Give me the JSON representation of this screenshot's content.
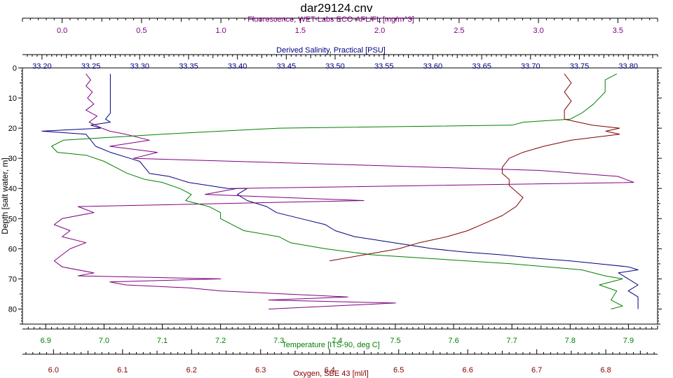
{
  "title": "dar29124.cnv",
  "chart_data": {
    "type": "line",
    "y_axis": {
      "label": "Depth [salt water, m]",
      "range": [
        0,
        85
      ],
      "inverted": true,
      "ticks": [
        "0",
        "10",
        "20",
        "30",
        "40",
        "50",
        "60",
        "70",
        "80"
      ],
      "tick_values": [
        0,
        10,
        20,
        30,
        40,
        50,
        60,
        70,
        80
      ]
    },
    "x_axes": [
      {
        "id": "fluorescence",
        "position": "top-outer",
        "label": "Fluorescence, WET Labs ECO-AFL/FL [mg/m^3]",
        "color": "#800080",
        "range": [
          -0.25,
          3.75
        ],
        "ticks": [
          "0.0",
          "0.5",
          "1.0",
          "1.5",
          "2.0",
          "2.5",
          "3.0",
          "3.5"
        ],
        "tick_values": [
          0,
          0.5,
          1.0,
          1.5,
          2.0,
          2.5,
          3.0,
          3.5
        ]
      },
      {
        "id": "salinity",
        "position": "top-inner",
        "label": "Derived Salinity, Practical [PSU]",
        "color": "#000080",
        "range": [
          33.18,
          33.83
        ],
        "ticks": [
          "33.20",
          "33.25",
          "33.30",
          "33.35",
          "33.40",
          "33.45",
          "33.50",
          "33.55",
          "33.60",
          "33.65",
          "33.70",
          "33.75",
          "33.80"
        ],
        "tick_values": [
          33.2,
          33.25,
          33.3,
          33.35,
          33.4,
          33.45,
          33.5,
          33.55,
          33.6,
          33.65,
          33.7,
          33.75,
          33.8
        ]
      },
      {
        "id": "temperature",
        "position": "bottom-inner",
        "label": "Temperature [ITS-90, deg C]",
        "color": "#008000",
        "range": [
          6.86,
          7.95
        ],
        "ticks": [
          "6.9",
          "7.0",
          "7.1",
          "7.2",
          "7.3",
          "7.4",
          "7.5",
          "7.6",
          "7.7",
          "7.8",
          "7.9"
        ],
        "tick_values": [
          6.9,
          7.0,
          7.1,
          7.2,
          7.3,
          7.4,
          7.5,
          7.6,
          7.7,
          7.8,
          7.9
        ]
      },
      {
        "id": "oxygen",
        "position": "bottom-outer",
        "label": "Oxygen, SBE 43 [ml/l]",
        "color": "#800000",
        "range": [
          5.955,
          6.875
        ],
        "ticks": [
          "6.0",
          "6.1",
          "6.2",
          "6.3",
          "6.4",
          "6.5",
          "6.6",
          "6.7",
          "6.8"
        ],
        "tick_values": [
          6.0,
          6.1,
          6.2,
          6.3,
          6.4,
          6.5,
          6.6,
          6.7,
          6.8
        ]
      }
    ],
    "series": [
      {
        "axis": "salinity",
        "color": "#000080",
        "points": [
          [
            33.27,
            2
          ],
          [
            33.27,
            5
          ],
          [
            33.27,
            8
          ],
          [
            33.27,
            12
          ],
          [
            33.27,
            15
          ],
          [
            33.265,
            17
          ],
          [
            33.27,
            18
          ],
          [
            33.25,
            19
          ],
          [
            33.26,
            20
          ],
          [
            33.2,
            21
          ],
          [
            33.245,
            22
          ],
          [
            33.25,
            24
          ],
          [
            33.255,
            26
          ],
          [
            33.27,
            28
          ],
          [
            33.29,
            30
          ],
          [
            33.3,
            31
          ],
          [
            33.305,
            33
          ],
          [
            33.31,
            35
          ],
          [
            33.33,
            36
          ],
          [
            33.35,
            38
          ],
          [
            33.37,
            39
          ],
          [
            33.39,
            40
          ],
          [
            33.41,
            40
          ],
          [
            33.4,
            42
          ],
          [
            33.41,
            44
          ],
          [
            33.43,
            46
          ],
          [
            33.44,
            48
          ],
          [
            33.465,
            50
          ],
          [
            33.49,
            52
          ],
          [
            33.5,
            54
          ],
          [
            33.52,
            56
          ],
          [
            33.54,
            57
          ],
          [
            33.56,
            58
          ],
          [
            33.58,
            59
          ],
          [
            33.6,
            60
          ],
          [
            33.63,
            61
          ],
          [
            33.67,
            62
          ],
          [
            33.7,
            63
          ],
          [
            33.74,
            64
          ],
          [
            33.77,
            65
          ],
          [
            33.8,
            66
          ],
          [
            33.81,
            67
          ],
          [
            33.79,
            68
          ],
          [
            33.8,
            70
          ],
          [
            33.81,
            72
          ],
          [
            33.8,
            74
          ],
          [
            33.81,
            76
          ],
          [
            33.81,
            78
          ],
          [
            33.81,
            80
          ]
        ]
      },
      {
        "axis": "fluorescence",
        "color": "#800080",
        "points": [
          [
            0.15,
            2
          ],
          [
            0.18,
            4
          ],
          [
            0.15,
            6
          ],
          [
            0.19,
            8
          ],
          [
            0.16,
            10
          ],
          [
            0.2,
            12
          ],
          [
            0.15,
            14
          ],
          [
            0.22,
            16
          ],
          [
            0.17,
            18
          ],
          [
            0.25,
            20
          ],
          [
            0.3,
            21
          ],
          [
            0.4,
            22
          ],
          [
            0.55,
            24
          ],
          [
            0.3,
            26
          ],
          [
            0.6,
            28
          ],
          [
            0.45,
            30
          ],
          [
            3.0,
            34
          ],
          [
            3.5,
            36
          ],
          [
            3.6,
            38
          ],
          [
            1.1,
            40
          ],
          [
            0.9,
            42
          ],
          [
            1.9,
            44
          ],
          [
            0.1,
            46
          ],
          [
            0.2,
            48
          ],
          [
            0.0,
            50
          ],
          [
            -0.05,
            52
          ],
          [
            0.05,
            54
          ],
          [
            0.0,
            56
          ],
          [
            0.15,
            58
          ],
          [
            0.05,
            60
          ],
          [
            0.0,
            62
          ],
          [
            -0.05,
            64
          ],
          [
            0.0,
            66
          ],
          [
            0.2,
            68
          ],
          [
            0.1,
            69
          ],
          [
            1.0,
            70
          ],
          [
            0.3,
            71
          ],
          [
            0.4,
            72
          ],
          [
            0.8,
            73
          ],
          [
            1.0,
            74
          ],
          [
            1.8,
            76
          ],
          [
            1.3,
            77
          ],
          [
            2.1,
            78
          ],
          [
            1.3,
            80
          ]
        ]
      },
      {
        "axis": "temperature",
        "color": "#008000",
        "points": [
          [
            7.88,
            2
          ],
          [
            7.86,
            4
          ],
          [
            7.86,
            8
          ],
          [
            7.84,
            12
          ],
          [
            7.82,
            15
          ],
          [
            7.8,
            17
          ],
          [
            7.72,
            18
          ],
          [
            7.7,
            19
          ],
          [
            7.3,
            20
          ],
          [
            7.1,
            22
          ],
          [
            6.93,
            24
          ],
          [
            6.91,
            26
          ],
          [
            6.92,
            28
          ],
          [
            6.97,
            29
          ],
          [
            7.0,
            31
          ],
          [
            7.02,
            33
          ],
          [
            7.04,
            35
          ],
          [
            7.07,
            37
          ],
          [
            7.1,
            38
          ],
          [
            7.13,
            40
          ],
          [
            7.15,
            42
          ],
          [
            7.14,
            44
          ],
          [
            7.18,
            46
          ],
          [
            7.2,
            48
          ],
          [
            7.2,
            50
          ],
          [
            7.22,
            52
          ],
          [
            7.24,
            54
          ],
          [
            7.3,
            56
          ],
          [
            7.32,
            58
          ],
          [
            7.38,
            60
          ],
          [
            7.46,
            62
          ],
          [
            7.54,
            63
          ],
          [
            7.7,
            65
          ],
          [
            7.82,
            67
          ],
          [
            7.86,
            69
          ],
          [
            7.89,
            70
          ],
          [
            7.85,
            72
          ],
          [
            7.88,
            74
          ],
          [
            7.87,
            77
          ],
          [
            7.89,
            79
          ],
          [
            7.87,
            80
          ]
        ]
      },
      {
        "axis": "oxygen",
        "color": "#800000",
        "points": [
          [
            6.74,
            2
          ],
          [
            6.75,
            5
          ],
          [
            6.74,
            8
          ],
          [
            6.75,
            11
          ],
          [
            6.74,
            14
          ],
          [
            6.74,
            17
          ],
          [
            6.78,
            19
          ],
          [
            6.82,
            20
          ],
          [
            6.8,
            21
          ],
          [
            6.82,
            22
          ],
          [
            6.75,
            24
          ],
          [
            6.71,
            26
          ],
          [
            6.68,
            28
          ],
          [
            6.66,
            30
          ],
          [
            6.65,
            33
          ],
          [
            6.65,
            35
          ],
          [
            6.66,
            37
          ],
          [
            6.66,
            39
          ],
          [
            6.67,
            41
          ],
          [
            6.68,
            43
          ],
          [
            6.67,
            46
          ],
          [
            6.65,
            49
          ],
          [
            6.62,
            52
          ],
          [
            6.6,
            54
          ],
          [
            6.57,
            56
          ],
          [
            6.53,
            58
          ],
          [
            6.5,
            60
          ],
          [
            6.45,
            62
          ],
          [
            6.4,
            64
          ]
        ]
      }
    ]
  }
}
